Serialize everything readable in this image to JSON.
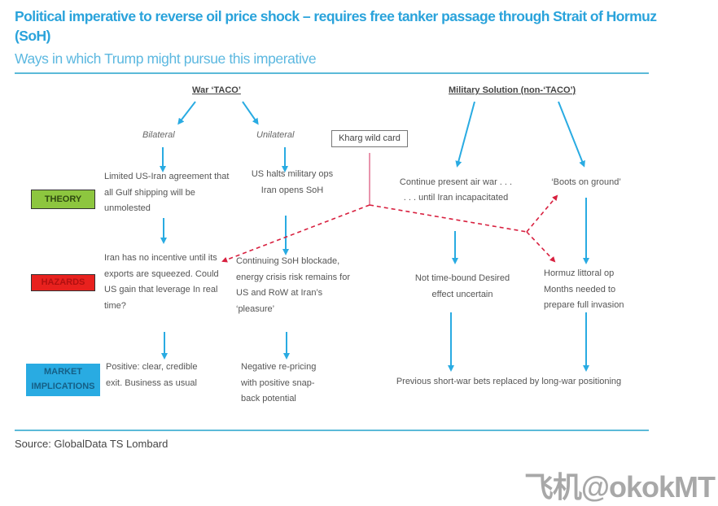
{
  "header": {
    "title": "Political imperative to reverse oil price shock – requires free tanker passage through Strait of Hormuz (SoH)",
    "subtitle": "Ways in which Trump might pursue this imperative"
  },
  "rows": {
    "theory": "THEORY",
    "hazards": "HAZARDS",
    "market": "MARKET IMPLICATIONS"
  },
  "colors": {
    "theory": "#8dc63f",
    "hazards": "#e8211e",
    "market": "#29abe2",
    "arrow": "#29abe2",
    "wildcard": "#e0406a"
  },
  "taco": {
    "heading": "War ‘TACO’",
    "bilateral": {
      "label": "Bilateral",
      "theory": "Limited US-Iran agreement that all Gulf shipping will be unmolested",
      "hazard": "Iran has no incentive until its exports are squeezed. Could US gain that leverage In real time?",
      "market": "Positive: clear, credible exit. Business as usual"
    },
    "unilateral": {
      "label": "Unilateral",
      "theory": "US halts military ops Iran opens SoH",
      "hazard": "Continuing SoH blockade, energy crisis risk remains for US and RoW at Iran’s ‘pleasure’",
      "market": "Negative re-pricing with positive snap-back potential"
    }
  },
  "wildcard": "Kharg wild card",
  "military": {
    "heading": "Military Solution (non-‘TACO’)",
    "airwar": {
      "theory_1": "Continue present air war . . .",
      "theory_2": ". . . until Iran incapacitated",
      "hazard": "Not time-bound Desired effect uncertain"
    },
    "ground": {
      "theory": "‘Boots on ground’",
      "hazard": "Hormuz littoral op Months needed to prepare full invasion"
    },
    "market": "Previous short-war bets replaced by long-war positioning"
  },
  "source": "Source: GlobalData TS Lombard",
  "watermark": "飞机@okokMT"
}
